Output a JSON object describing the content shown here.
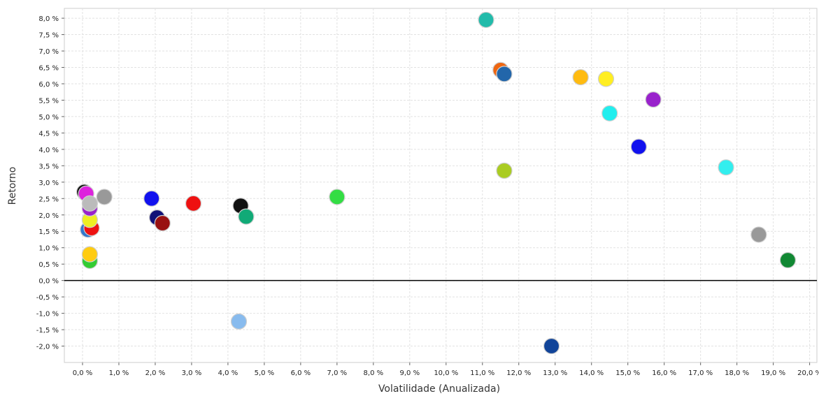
{
  "chart_data": {
    "type": "scatter",
    "xlabel": "Volatilidade (Anualizada)",
    "ylabel": "Retorno",
    "xlim": [
      -0.5,
      20.2
    ],
    "ylim": [
      -2.5,
      8.3
    ],
    "x_ticks": [
      0,
      1,
      2,
      3,
      4,
      5,
      6,
      7,
      8,
      9,
      10,
      11,
      12,
      13,
      14,
      15,
      16,
      17,
      18,
      19,
      20
    ],
    "x_tick_labels": [
      "0,0 %",
      "1,0 %",
      "2,0 %",
      "3,0 %",
      "4,0 %",
      "5,0 %",
      "6,0 %",
      "7,0 %",
      "8,0 %",
      "9,0 %",
      "10,0 %",
      "11,0 %",
      "12,0 %",
      "13,0 %",
      "14,0 %",
      "15,0 %",
      "16,0 %",
      "17,0 %",
      "18,0 %",
      "19,0 %",
      "20,0 %"
    ],
    "y_ticks": [
      8,
      7.5,
      7,
      6.5,
      6,
      5.5,
      5,
      4.5,
      4,
      3.5,
      3,
      2.5,
      2,
      1.5,
      1,
      0.5,
      0,
      -0.5,
      -1,
      -1.5,
      -2
    ],
    "y_tick_labels": [
      "8,0 %",
      "7,5 %",
      "7,0 %",
      "6,5 %",
      "6,0 %",
      "5,5 %",
      "5,0 %",
      "4,5 %",
      "4,0 %",
      "3,5 %",
      "3,0 %",
      "2,5 %",
      "2,0 %",
      "1,5 %",
      "1,0 %",
      "0,5 %",
      "0,0 %",
      "-0,5 %",
      "-1,0 %",
      "-1,5 %",
      "-2,0 %"
    ],
    "grid": true,
    "zero_line": true,
    "points": [
      {
        "x": 0.05,
        "y": 2.7,
        "color": "#111111"
      },
      {
        "x": 0.1,
        "y": 2.65,
        "color": "#dd22dd"
      },
      {
        "x": 0.15,
        "y": 1.55,
        "color": "#3377cc"
      },
      {
        "x": 0.25,
        "y": 1.6,
        "color": "#ee1111"
      },
      {
        "x": 0.2,
        "y": 1.85,
        "color": "#eeee22"
      },
      {
        "x": 0.2,
        "y": 2.2,
        "color": "#9922cc"
      },
      {
        "x": 0.2,
        "y": 2.35,
        "color": "#bbbbbb"
      },
      {
        "x": 0.2,
        "y": 0.6,
        "color": "#33cc33"
      },
      {
        "x": 0.2,
        "y": 0.8,
        "color": "#ffcc11"
      },
      {
        "x": 0.6,
        "y": 2.55,
        "color": "#999999"
      },
      {
        "x": 1.9,
        "y": 2.5,
        "color": "#1111ee"
      },
      {
        "x": 2.05,
        "y": 1.92,
        "color": "#111177"
      },
      {
        "x": 2.2,
        "y": 1.75,
        "color": "#991111"
      },
      {
        "x": 3.05,
        "y": 2.35,
        "color": "#ee1111"
      },
      {
        "x": 4.35,
        "y": 2.28,
        "color": "#111111"
      },
      {
        "x": 4.5,
        "y": 1.95,
        "color": "#11aa77"
      },
      {
        "x": 4.3,
        "y": -1.25,
        "color": "#88bbee"
      },
      {
        "x": 7.0,
        "y": 2.55,
        "color": "#33dd44"
      },
      {
        "x": 11.1,
        "y": 7.95,
        "color": "#22bbaa"
      },
      {
        "x": 11.5,
        "y": 6.42,
        "color": "#ee6611"
      },
      {
        "x": 11.6,
        "y": 6.3,
        "color": "#2266aa"
      },
      {
        "x": 11.6,
        "y": 3.35,
        "color": "#aacc22"
      },
      {
        "x": 12.9,
        "y": -2.0,
        "color": "#114499"
      },
      {
        "x": 13.7,
        "y": 6.2,
        "color": "#ffbb11"
      },
      {
        "x": 14.4,
        "y": 6.15,
        "color": "#ffee22"
      },
      {
        "x": 14.5,
        "y": 5.1,
        "color": "#22eeee"
      },
      {
        "x": 15.3,
        "y": 4.08,
        "color": "#1111ee"
      },
      {
        "x": 15.7,
        "y": 5.52,
        "color": "#9922cc"
      },
      {
        "x": 17.7,
        "y": 3.45,
        "color": "#33eeee"
      },
      {
        "x": 18.6,
        "y": 1.4,
        "color": "#999999"
      },
      {
        "x": 19.4,
        "y": 0.62,
        "color": "#118833"
      }
    ]
  }
}
